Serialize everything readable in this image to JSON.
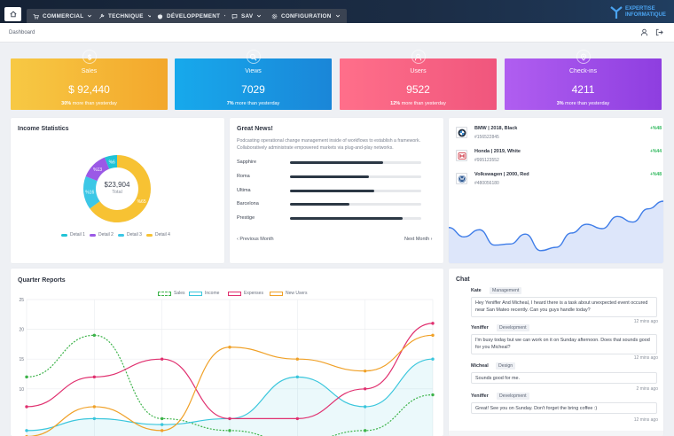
{
  "nav": {
    "items": [
      {
        "label": "COMMERCIAL"
      },
      {
        "label": "TECHNIQUE"
      },
      {
        "label": "DÉVELOPPEMENT"
      },
      {
        "label": "SAV"
      },
      {
        "label": "CONFIGURATION"
      }
    ],
    "brand_line1": "EXPERTISE",
    "brand_line2": "INFORMATIQUE"
  },
  "breadcrumb": "Dashboard",
  "stats": [
    {
      "label": "Sales",
      "value": "$ 92,440",
      "pct": "30%",
      "suffix": "more than yesterday",
      "color_from": "#f7c944",
      "color_to": "#f3a72b"
    },
    {
      "label": "Views",
      "value": "7029",
      "pct": "7%",
      "suffix": "more than yesterday",
      "color_from": "#17a9ec",
      "color_to": "#1a86d8"
    },
    {
      "label": "Users",
      "value": "9522",
      "pct": "12%",
      "suffix": "more than yesterday",
      "color_from": "#ff6f8a",
      "color_to": "#f0567d"
    },
    {
      "label": "Check-ins",
      "value": "4211",
      "pct": "3%",
      "suffix": "more than yesterday",
      "color_from": "#b05ef0",
      "color_to": "#8e3ee0"
    }
  ],
  "income": {
    "title": "Income Statistics",
    "total_value": "$23,904",
    "total_label": "Total",
    "chart_data": {
      "type": "pie",
      "title": "Income Statistics",
      "categories": [
        "Detail 1",
        "Detail 2",
        "Detail 3",
        "Detail 4"
      ],
      "values": [
        6,
        13,
        16,
        65
      ],
      "labels": [
        "%6",
        "%13",
        "%16",
        "%65"
      ],
      "colors": [
        "#20c3d6",
        "#9b59e6",
        "#3cc7e6",
        "#f7c233"
      ],
      "remainder_color": "#e3e8ef"
    }
  },
  "news": {
    "title": "Great News!",
    "text": "Podcasting operational change management inside of workflows to establish a framework. Collaboratively administrate empowered markets via plug-and-play networks.",
    "bars": [
      {
        "label": "Sapphire",
        "pct": 71
      },
      {
        "label": "Roma",
        "pct": 60
      },
      {
        "label": "Ultima",
        "pct": 64
      },
      {
        "label": "Barcelona",
        "pct": 45
      },
      {
        "label": "Prestige",
        "pct": 86
      }
    ],
    "prev": "Previous Month",
    "next": "Next Month"
  },
  "cars": [
    {
      "name": "BMW | 2018, Black",
      "id": "#156522845",
      "delta": "+%48",
      "brand": "bmw"
    },
    {
      "name": "Honda | 2019, White",
      "id": "#995123552",
      "delta": "+%44",
      "brand": "honda"
    },
    {
      "name": "Volkswagen | 2000, Red",
      "id": "#480056180",
      "delta": "+%48",
      "brand": "vw"
    }
  ],
  "car_trend": [
    0.52,
    0.35,
    0.48,
    0.2,
    0.22,
    0.4,
    0.1,
    0.16,
    0.42,
    0.58,
    0.5,
    0.72,
    0.62,
    0.86,
    1.0
  ],
  "quarter": {
    "title": "Quarter Reports",
    "chart_data": {
      "type": "line",
      "title": "Quarter Reports",
      "xlim": [
        0,
        6
      ],
      "ylim": [
        5,
        25
      ],
      "yticks": [
        25,
        20,
        15,
        10
      ],
      "grid": true,
      "legend": "top",
      "series": [
        {
          "name": "Sales",
          "color": "#3db34a",
          "dashed": true,
          "x": [
            0,
            1,
            2,
            3,
            4,
            5,
            6
          ],
          "values": [
            12,
            19,
            5,
            3,
            1,
            3,
            9
          ]
        },
        {
          "name": "Income",
          "color": "#3ac6dc",
          "fill": true,
          "x": [
            0,
            1,
            2,
            3,
            4,
            5,
            6
          ],
          "values": [
            3,
            5,
            4,
            5,
            12,
            7,
            15
          ]
        },
        {
          "name": "Expenses",
          "color": "#e0306f",
          "x": [
            0,
            1,
            2,
            3,
            4,
            5,
            6
          ],
          "values": [
            7,
            12,
            15,
            5,
            5,
            10,
            21
          ]
        },
        {
          "name": "New Users",
          "color": "#f0a128",
          "x": [
            0,
            1,
            2,
            3,
            4,
            5,
            6
          ],
          "values": [
            2,
            7,
            3,
            17,
            15,
            13,
            19
          ]
        }
      ]
    }
  },
  "chat": {
    "title": "Chat",
    "messages": [
      {
        "who": "Kate",
        "tag": "Management",
        "text": "Hey Yeniffer And Micheal, I heard there is a task about unexpected event occured near San Mateo recently. Can you guys handle today?",
        "time": "12 mins ago"
      },
      {
        "who": "Yeniffer",
        "tag": "Development",
        "text": "I'm busy today but we can work on it on Sunday afternoon. Does that sounds good for you Micheal?",
        "time": "12 mins ago"
      },
      {
        "who": "Micheal",
        "tag": "Design",
        "text": "Sounds good for me.",
        "time": "2 mins ago"
      },
      {
        "who": "Yeniffer",
        "tag": "Development",
        "text": "Great! See you on Sunday. Don't forget the bring coffee :)",
        "time": "12 mins ago"
      }
    ]
  }
}
